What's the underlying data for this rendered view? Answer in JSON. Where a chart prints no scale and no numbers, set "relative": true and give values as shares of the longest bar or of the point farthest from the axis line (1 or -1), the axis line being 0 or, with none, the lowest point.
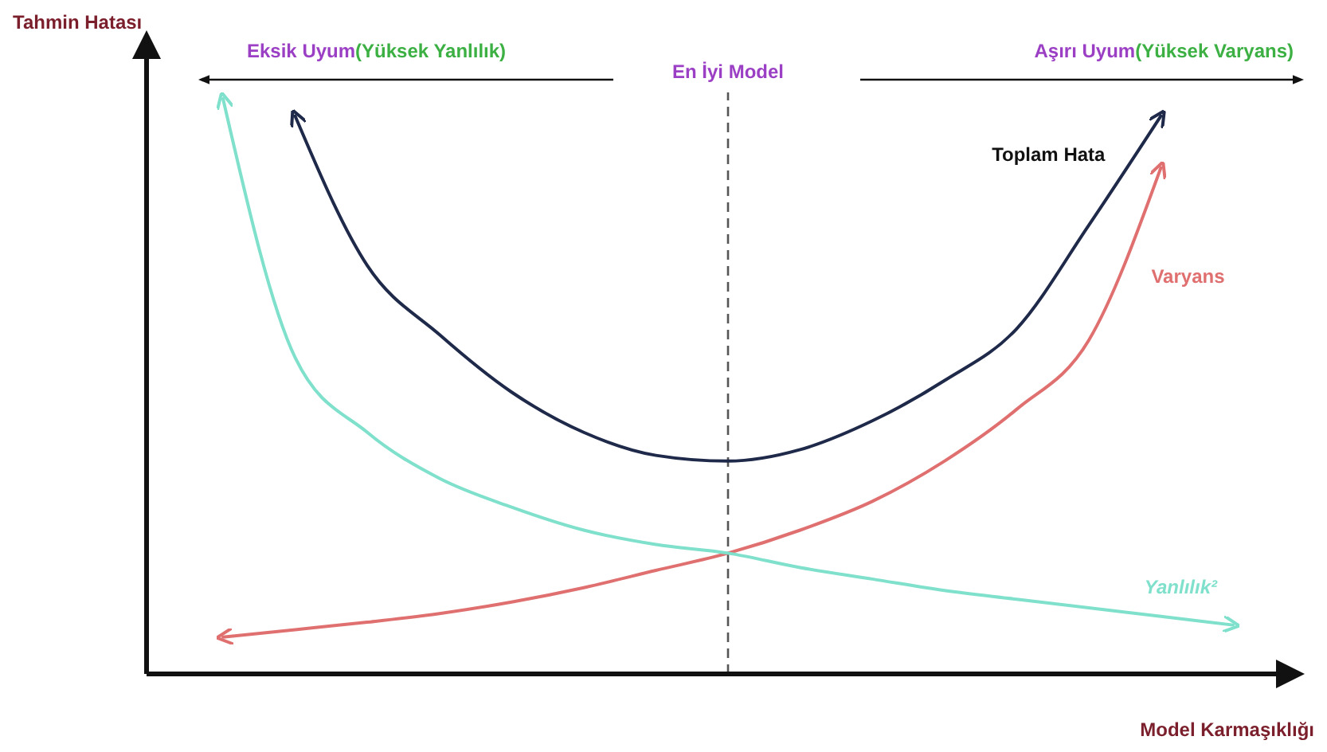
{
  "chart_data": {
    "type": "line",
    "relative": true,
    "xlabel": "Model Karmaşıklığı",
    "ylabel": "Tahmin Hatası",
    "grid": false,
    "marker": "none",
    "line_style": "solid",
    "categories": [
      null,
      null,
      null,
      null,
      null,
      null,
      null,
      null,
      null,
      null,
      null,
      null,
      null,
      null,
      null
    ],
    "series": [
      {
        "name": "Toplam Hata",
        "color": "#1f2a4a",
        "values": [
          null,
          0.97,
          0.71,
          0.59,
          0.49,
          0.42,
          0.38,
          0.37,
          0.39,
          0.44,
          0.51,
          0.6,
          0.78,
          0.97,
          null
        ]
      },
      {
        "name": "Varyans",
        "color": "#e07070",
        "values": [
          0.064,
          0.077,
          0.09,
          0.105,
          0.125,
          0.15,
          0.18,
          0.21,
          0.25,
          0.3,
          0.37,
          0.46,
          0.58,
          0.88,
          null
        ]
      },
      {
        "name": "Yanlılık²",
        "color": "#7fe0cc",
        "values": [
          1.0,
          0.55,
          0.42,
          0.34,
          0.29,
          0.25,
          0.225,
          0.21,
          0.185,
          0.165,
          0.145,
          0.13,
          0.115,
          0.1,
          0.085
        ]
      }
    ],
    "annotations": [
      "Eksik Uyum(Yüksek Yanlılık)",
      "En İyi Model",
      "Aşırı Uyum(Yüksek Varyans)"
    ]
  }
}
